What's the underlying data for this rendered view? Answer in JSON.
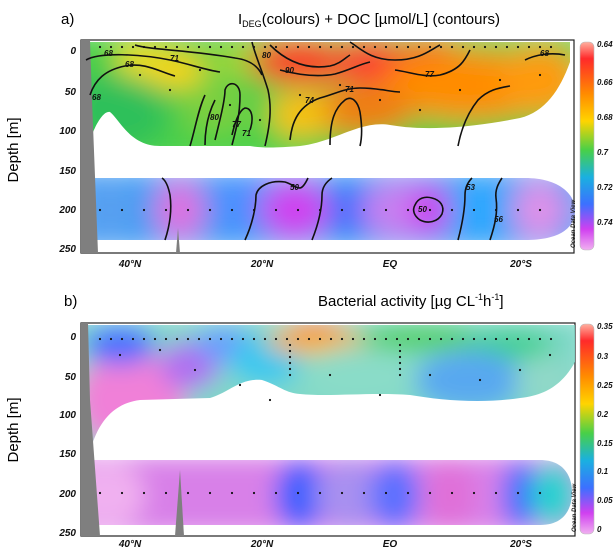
{
  "chart_data": [
    {
      "type": "heatmap",
      "panel": "a)",
      "title": "I(colours) + DOC [µmol/L] (contours)",
      "title_parts": {
        "main": "I",
        "subscript": "DEG",
        "rest": "(colours) + DOC [µmol/L] (contours)"
      },
      "ylabel": "Depth [m]",
      "x_ticks": [
        "40°N",
        "20°N",
        "EQ",
        "20°S"
      ],
      "x_tick_lat": [
        40,
        20,
        0,
        -20
      ],
      "x_range_lat": [
        52,
        -35
      ],
      "y_ticks": [
        "0",
        "50",
        "100",
        "150",
        "200",
        "250"
      ],
      "y_tick_values": [
        0,
        50,
        100,
        150,
        200,
        250
      ],
      "ylim": [
        0,
        250
      ],
      "colorbar": {
        "ticks": [
          "0.64",
          "0.66",
          "0.68",
          "0.7",
          "0.72",
          "0.74"
        ],
        "values": [
          0.64,
          0.66,
          0.68,
          0.7,
          0.72,
          0.74
        ]
      },
      "contour_labels": [
        "68",
        "68",
        "71",
        "68",
        "90",
        "80",
        "77",
        "68",
        "74",
        "71",
        "80",
        "77",
        "71",
        "50",
        "53",
        "50",
        "56"
      ],
      "watermark": "Ocean Data View",
      "colors": [
        "#ff2a2a",
        "#ff8c00",
        "#ffd400",
        "#48d048",
        "#1ab0e0",
        "#3c70ff",
        "#d040f0",
        "#f0b0f0"
      ]
    },
    {
      "type": "heatmap",
      "panel": "b)",
      "title": "Bacterial activity [µg CL⁻¹h⁻¹]",
      "title_parts": {
        "main": "Bacterial activity [µg CL",
        "sup1": "-1",
        "mid": "h",
        "sup2": "-1",
        "end": "]"
      },
      "ylabel": "Depth [m]",
      "x_ticks": [
        "40°N",
        "20°N",
        "EQ",
        "20°S"
      ],
      "x_tick_lat": [
        40,
        20,
        0,
        -20
      ],
      "x_range_lat": [
        52,
        -35
      ],
      "y_ticks": [
        "0",
        "50",
        "100",
        "150",
        "200",
        "250"
      ],
      "y_tick_values": [
        0,
        50,
        100,
        150,
        200,
        250
      ],
      "ylim": [
        0,
        250
      ],
      "colorbar": {
        "ticks": [
          "0.35",
          "0.3",
          "0.25",
          "0.2",
          "0.15",
          "0.1",
          "0.05",
          "0"
        ],
        "values": [
          0.35,
          0.3,
          0.25,
          0.2,
          0.15,
          0.1,
          0.05,
          0
        ]
      },
      "watermark": "Ocean Data View",
      "colors": [
        "#ff2a2a",
        "#ff8c00",
        "#ffd400",
        "#48d048",
        "#1ab0e0",
        "#3c70ff",
        "#d040f0",
        "#f0b0f0"
      ]
    }
  ]
}
